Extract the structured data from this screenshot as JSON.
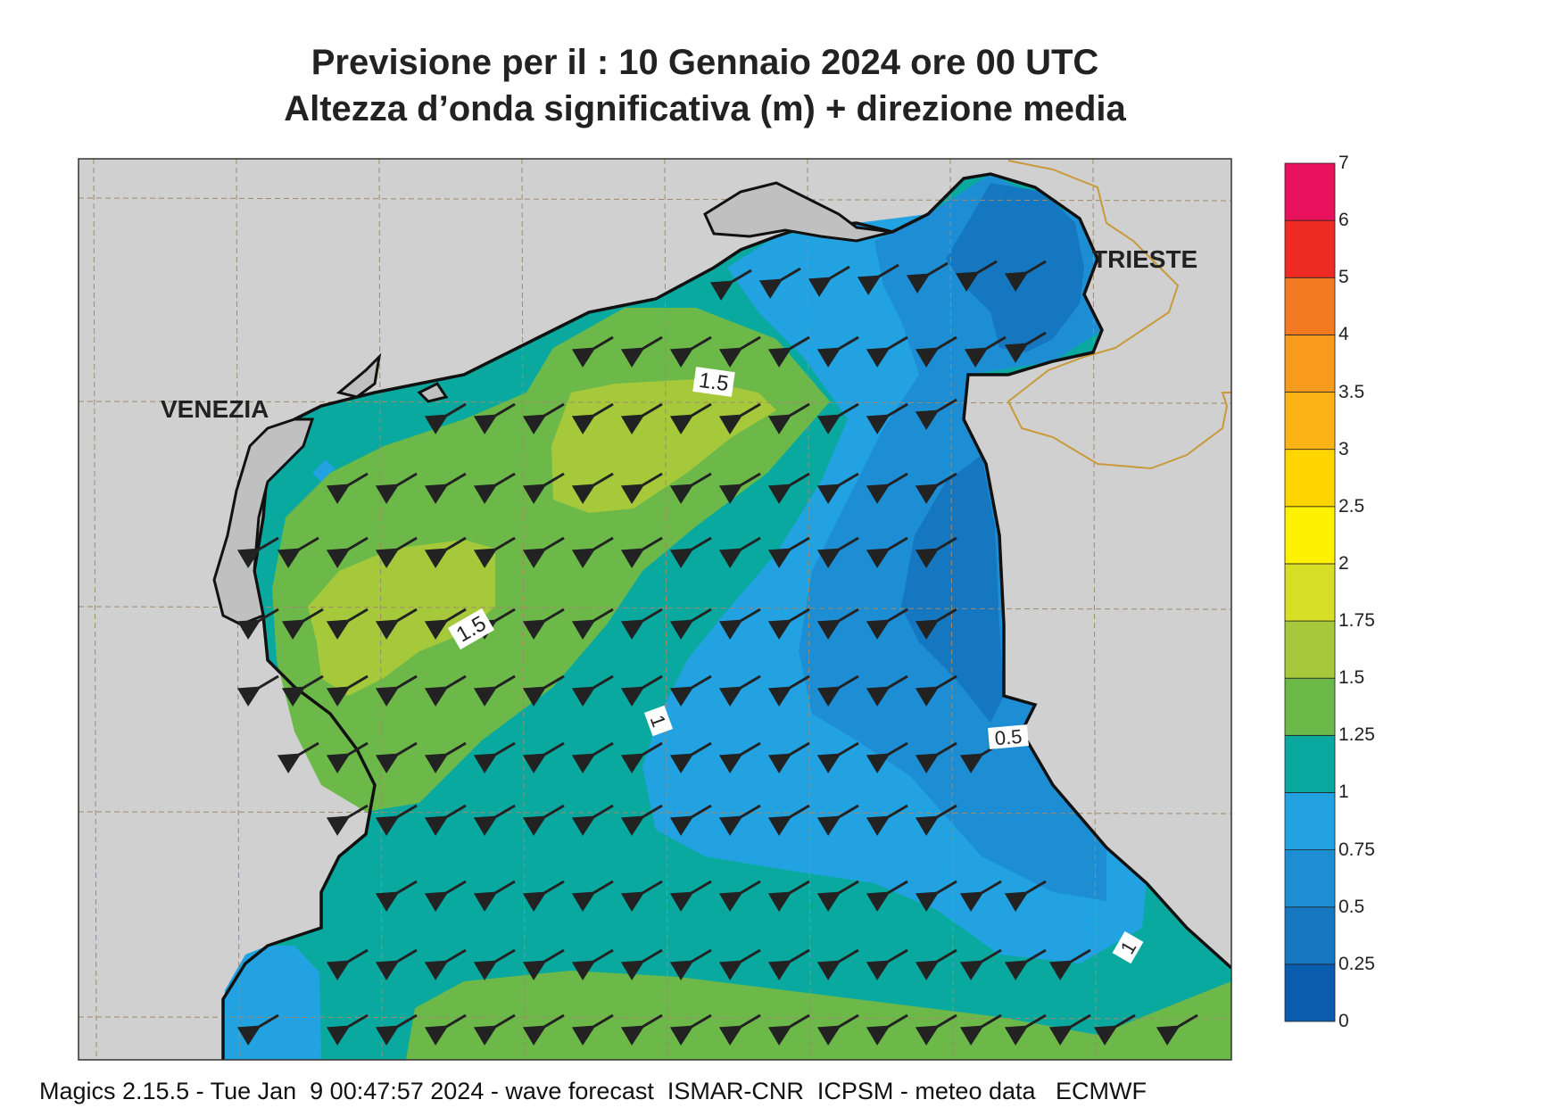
{
  "title_line1": "Previsione per il  :  10  Gennaio  2024   ore 00 UTC",
  "title_line2": "Altezza d’onda significativa (m) + direzione media",
  "cities": {
    "venezia": "VENEZIA",
    "trieste": "TRIESTE"
  },
  "contour_labels": [
    "1.5",
    "1.5",
    "1",
    "0.5",
    "1"
  ],
  "legend": {
    "ticks": [
      "0",
      "0.25",
      "0.5",
      "0.75",
      "1",
      "1.25",
      "1.5",
      "1.75",
      "2",
      "2.5",
      "3",
      "3.5",
      "4",
      "5",
      "6",
      "7"
    ],
    "colors": [
      "#0a5cae",
      "#1577c0",
      "#1e8ed4",
      "#23a2e2",
      "#0aa9a0",
      "#6cb94a",
      "#a5c93a",
      "#d6df26",
      "#fff200",
      "#ffd500",
      "#fbb316",
      "#f89a1c",
      "#f37a20",
      "#ee2a24",
      "#e8125c"
    ]
  },
  "wave_direction": "southwest",
  "footer": "Magics 2.15.5 - Tue Jan  9 00:47:57 2024 - wave forecast  ISMAR-CNR  ICPSM - meteo data   ECMWF"
}
